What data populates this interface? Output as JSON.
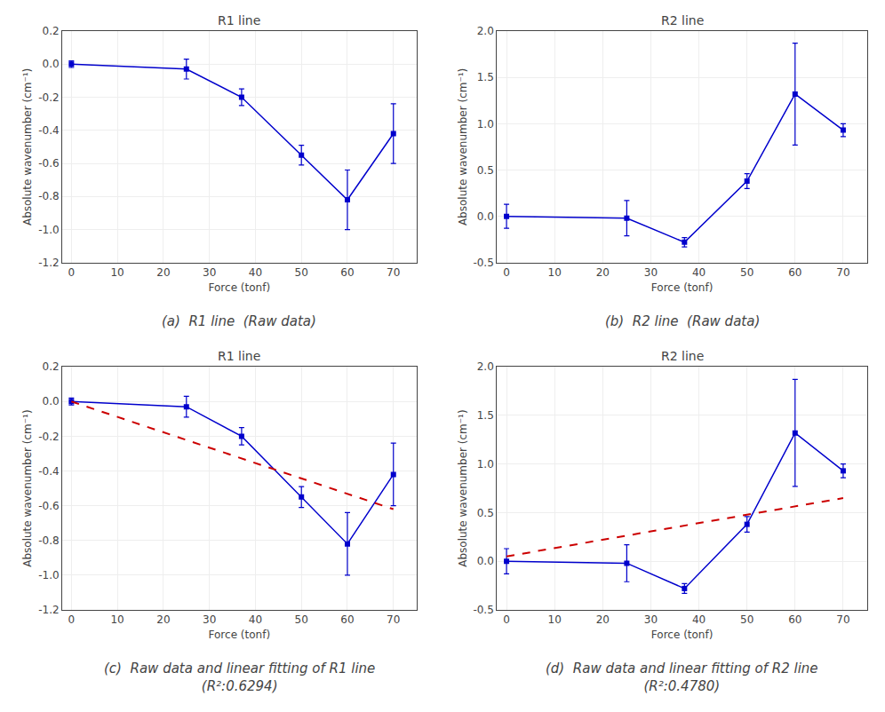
{
  "chart_data": [
    {
      "type": "line",
      "title": "R1 line",
      "xlabel": "Force (tonf)",
      "ylabel": "Absolute wavenumber (cm⁻¹)",
      "x": [
        0,
        25,
        37,
        50,
        60,
        70
      ],
      "series": [
        {
          "color": "#0000CC",
          "marker": "square",
          "line_style": "solid",
          "values": [
            0.0,
            -0.03,
            -0.2,
            -0.55,
            -0.82,
            -0.42
          ],
          "yerr": [
            0.02,
            0.06,
            0.05,
            0.06,
            0.18,
            0.18
          ]
        }
      ],
      "xlim": [
        -2,
        75
      ],
      "xticks": [
        0,
        10,
        20,
        30,
        40,
        50,
        60,
        70
      ],
      "ylim": [
        -1.2,
        0.2
      ],
      "yticks": [
        -1.2,
        {
          "value": -1.0,
          "label": "-1.0"
        },
        -0.8,
        -0.6,
        -0.4,
        -0.2,
        {
          "value": 0.0,
          "label": "0.0"
        },
        0.2
      ],
      "grid": true,
      "annotations": [
        "(a)  R1 line  (Raw data)"
      ]
    },
    {
      "type": "line",
      "title": "R2 line",
      "xlabel": "Force (tonf)",
      "ylabel": "Absolute wavenumber (cm⁻¹)",
      "x": [
        0,
        25,
        37,
        50,
        60,
        70
      ],
      "series": [
        {
          "color": "#0000CC",
          "marker": "square",
          "line_style": "solid",
          "values": [
            0.0,
            -0.02,
            -0.28,
            0.38,
            1.32,
            0.93
          ],
          "yerr": [
            0.13,
            0.19,
            0.05,
            0.08,
            0.55,
            0.07
          ]
        }
      ],
      "xlim": [
        -2,
        75
      ],
      "xticks": [
        0,
        10,
        20,
        30,
        40,
        50,
        60,
        70
      ],
      "ylim": [
        -0.5,
        2.0
      ],
      "yticks": [
        -0.5,
        {
          "value": 0.0,
          "label": "0.0"
        },
        0.5,
        {
          "value": 1.0,
          "label": "1.0"
        },
        1.5,
        {
          "value": 2.0,
          "label": "2.0"
        }
      ],
      "grid": true,
      "annotations": [
        "(b)  R2 line  (Raw data)"
      ]
    },
    {
      "type": "line",
      "title": "R1 line",
      "xlabel": "Force (tonf)",
      "ylabel": "Absolute wavenumber (cm⁻¹)",
      "x": [
        0,
        25,
        37,
        50,
        60,
        70
      ],
      "series": [
        {
          "color": "#0000CC",
          "marker": "square",
          "line_style": "solid",
          "values": [
            0.0,
            -0.03,
            -0.2,
            -0.55,
            -0.82,
            -0.42
          ],
          "yerr": [
            0.02,
            0.06,
            0.05,
            0.06,
            0.18,
            0.18
          ]
        },
        {
          "color": "#CC0000",
          "line_style": "dashed",
          "x": [
            0,
            70
          ],
          "values": [
            0.0,
            -0.62
          ]
        }
      ],
      "xlim": [
        -2,
        75
      ],
      "xticks": [
        0,
        10,
        20,
        30,
        40,
        50,
        60,
        70
      ],
      "ylim": [
        -1.2,
        0.2
      ],
      "yticks": [
        -1.2,
        {
          "value": -1.0,
          "label": "-1.0"
        },
        -0.8,
        -0.6,
        -0.4,
        -0.2,
        {
          "value": 0.0,
          "label": "0.0"
        },
        0.2
      ],
      "grid": true,
      "annotations": [
        "(c)  Raw data and linear fitting of R1 line",
        "(R²:0.6294)"
      ]
    },
    {
      "type": "line",
      "title": "R2 line",
      "xlabel": "Force (tonf)",
      "ylabel": "Absolute wavenumber (cm⁻¹)",
      "x": [
        0,
        25,
        37,
        50,
        60,
        70
      ],
      "series": [
        {
          "color": "#0000CC",
          "marker": "square",
          "line_style": "solid",
          "values": [
            0.0,
            -0.02,
            -0.28,
            0.38,
            1.32,
            0.93
          ],
          "yerr": [
            0.13,
            0.19,
            0.05,
            0.08,
            0.55,
            0.07
          ]
        },
        {
          "color": "#CC0000",
          "line_style": "dashed",
          "x": [
            0,
            70
          ],
          "values": [
            0.05,
            0.65
          ]
        }
      ],
      "xlim": [
        -2,
        75
      ],
      "xticks": [
        0,
        10,
        20,
        30,
        40,
        50,
        60,
        70
      ],
      "ylim": [
        -0.5,
        2.0
      ],
      "yticks": [
        -0.5,
        {
          "value": 0.0,
          "label": "0.0"
        },
        0.5,
        {
          "value": 1.0,
          "label": "1.0"
        },
        1.5,
        {
          "value": 2.0,
          "label": "2.0"
        }
      ],
      "grid": true,
      "annotations": [
        "(d)  Raw data and linear fitting of R2 line",
        "(R²:0.4780)"
      ]
    }
  ]
}
